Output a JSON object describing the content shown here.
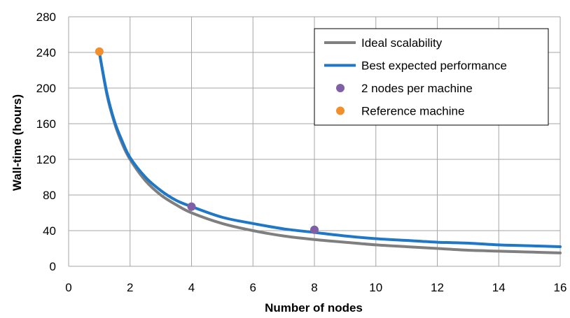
{
  "chart_data": {
    "type": "line",
    "title": "",
    "xlabel": "Number of nodes",
    "ylabel": "Wall-time (hours)",
    "xlim": [
      0,
      16
    ],
    "ylim": [
      0,
      280
    ],
    "x_ticks": [
      "0",
      "2",
      "4",
      "6",
      "8",
      "10",
      "12",
      "14",
      "16"
    ],
    "y_ticks": [
      "0",
      "40",
      "80",
      "120",
      "160",
      "200",
      "240",
      "280"
    ],
    "grid": true,
    "legend_position": "top-right",
    "series": [
      {
        "name": "Ideal scalability",
        "kind": "line",
        "color": "#7f7f7f",
        "x": [
          1,
          1.25,
          1.5,
          1.75,
          2,
          2.5,
          3,
          3.5,
          4,
          5,
          6,
          7,
          8,
          9,
          10,
          11,
          12,
          13,
          14,
          15,
          16
        ],
        "y": [
          240,
          192,
          160,
          137,
          120,
          96,
          80,
          69,
          60,
          48,
          40,
          34,
          30,
          27,
          24,
          22,
          20,
          18,
          17,
          16,
          15
        ]
      },
      {
        "name": "Best expected performance",
        "kind": "line",
        "color": "#1f77c8",
        "x": [
          1,
          1.25,
          1.5,
          1.75,
          2,
          2.5,
          3,
          3.5,
          4,
          5,
          6,
          7,
          8,
          9,
          10,
          11,
          12,
          13,
          14,
          15,
          16
        ],
        "y": [
          240,
          194,
          162,
          140,
          122,
          100,
          85,
          74,
          67,
          55,
          48,
          42,
          38,
          34,
          31,
          29,
          27,
          26,
          24,
          23,
          22
        ]
      },
      {
        "name": "2 nodes per machine",
        "kind": "scatter",
        "color": "#7f5fa6",
        "x": [
          4,
          8
        ],
        "y": [
          67,
          41
        ]
      },
      {
        "name": "Reference machine",
        "kind": "scatter",
        "color": "#f28e2b",
        "x": [
          1
        ],
        "y": [
          241
        ]
      }
    ]
  }
}
